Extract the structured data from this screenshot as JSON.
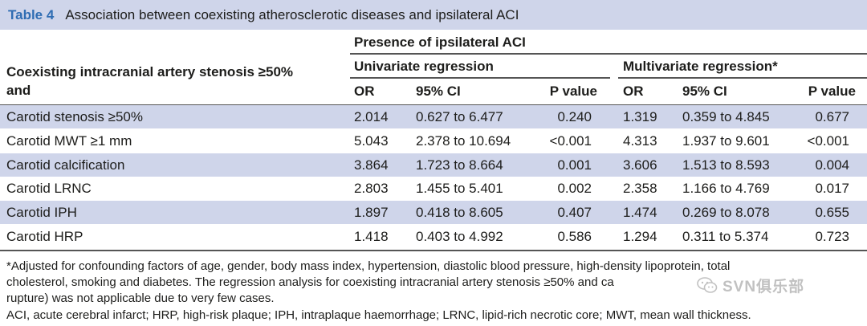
{
  "table": {
    "label": "Table 4",
    "title": "Association between coexisting atherosclerotic diseases and ipsilateral ACI",
    "row_header": "Coexisting intracranial artery stenosis ≥50% and",
    "row_header_line1": "Coexisting intracranial artery stenosis ≥50%",
    "row_header_line2": "and",
    "group_header": "Presence of ipsilateral ACI",
    "uni_header": "Univariate regression",
    "multi_header": "Multivariate regression*",
    "col_or": "OR",
    "col_ci": "95% CI",
    "col_p": "P value",
    "rows": [
      {
        "label": "Carotid stenosis ≥50%",
        "u_or": "2.014",
        "u_ci": "0.627 to 6.477",
        "u_p": "0.240",
        "m_or": "1.319",
        "m_ci": "0.359 to 4.845",
        "m_p": "0.677"
      },
      {
        "label": "Carotid MWT ≥1 mm",
        "u_or": "5.043",
        "u_ci": "2.378 to 10.694",
        "u_p": "<0.001",
        "m_or": "4.313",
        "m_ci": "1.937 to 9.601",
        "m_p": "<0.001"
      },
      {
        "label": "Carotid calcification",
        "u_or": "3.864",
        "u_ci": "1.723 to 8.664",
        "u_p": "0.001",
        "m_or": "3.606",
        "m_ci": "1.513 to 8.593",
        "m_p": "0.004"
      },
      {
        "label": "Carotid LRNC",
        "u_or": "2.803",
        "u_ci": "1.455 to 5.401",
        "u_p": "0.002",
        "m_or": "2.358",
        "m_ci": "1.166 to 4.769",
        "m_p": "0.017"
      },
      {
        "label": "Carotid IPH",
        "u_or": "1.897",
        "u_ci": "0.418 to 8.605",
        "u_p": "0.407",
        "m_or": "1.474",
        "m_ci": "0.269 to 8.078",
        "m_p": "0.655"
      },
      {
        "label": "Carotid HRP",
        "u_or": "1.418",
        "u_ci": "0.403 to 4.992",
        "u_p": "0.586",
        "m_or": "1.294",
        "m_ci": "0.311 to 5.374",
        "m_p": "0.723"
      }
    ]
  },
  "footnotes": {
    "line1": "*Adjusted for confounding factors of age, gender, body mass index, hypertension, diastolic blood pressure, high-density lipoprotein, total",
    "line2": "cholesterol, smoking and diabetes. The regression analysis for coexisting intracranial artery stenosis ≥50% and ca",
    "line3": "rupture) was not applicable due to very few cases.",
    "line4": "ACI, acute cerebral infarct; HRP, high-risk plaque; IPH, intraplaque haemorrhage; LRNC, lipid-rich necrotic core; MWT, mean wall thickness."
  },
  "watermark": {
    "text": "SVN俱乐部",
    "icon": "wechat-icon"
  },
  "colors": {
    "shade": "#cfd5ea",
    "label_blue": "#2f6db3"
  }
}
